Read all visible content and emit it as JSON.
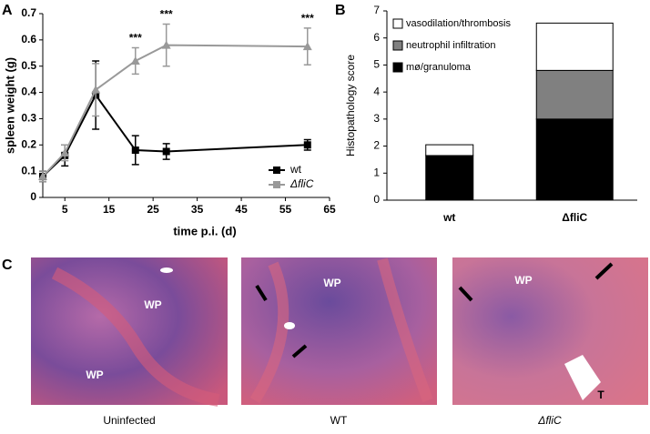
{
  "chart_data": [
    {
      "type": "line",
      "panel_label": "A",
      "ylabel": "spleen weight (g)",
      "xlabel": "time p.i. (d)",
      "x": [
        0,
        5,
        12,
        21,
        28,
        60
      ],
      "series": [
        {
          "name": "wt",
          "color": "#000000",
          "marker": "square",
          "values": [
            0.08,
            0.16,
            0.39,
            0.18,
            0.175,
            0.2
          ],
          "errors": [
            0.02,
            0.04,
            0.13,
            0.055,
            0.03,
            0.02
          ]
        },
        {
          "name": "ΔfliC",
          "color": "#999999",
          "marker": "triangle",
          "values": [
            0.08,
            0.17,
            0.41,
            0.52,
            0.58,
            0.575
          ],
          "errors": [
            0.02,
            0.03,
            0.1,
            0.05,
            0.08,
            0.07
          ]
        }
      ],
      "annotations": [
        {
          "text": "***",
          "x": 21
        },
        {
          "text": "***",
          "x": 28
        },
        {
          "text": "***",
          "x": 60
        }
      ],
      "xlim": [
        0,
        65
      ],
      "xticks": [
        5,
        15,
        25,
        35,
        45,
        55,
        65
      ],
      "ylim": [
        0,
        0.7
      ],
      "yticks": [
        0,
        0.1,
        0.2,
        0.3,
        0.4,
        0.5,
        0.6,
        0.7
      ],
      "legend": "lower right"
    },
    {
      "type": "stacked-bar",
      "panel_label": "B",
      "ylabel": "Histopathology score",
      "categories": [
        "wt",
        "ΔfliC"
      ],
      "series": [
        {
          "name": "mø/granuloma",
          "color": "#000000",
          "values": [
            1.65,
            3.0
          ]
        },
        {
          "name": "neutrophil infiltration",
          "color": "#808080",
          "values": [
            0,
            1.8
          ]
        },
        {
          "name": "vasodilation/thrombosis",
          "color": "#ffffff",
          "values": [
            0.4,
            1.75
          ]
        }
      ],
      "ylim": [
        0,
        7
      ],
      "yticks": [
        0,
        1,
        2,
        3,
        4,
        5,
        6,
        7
      ],
      "legend": "upper left"
    }
  ],
  "panel_c": {
    "label": "C",
    "images": [
      {
        "caption": "Uninfected",
        "labels": [
          "WP",
          "WP"
        ]
      },
      {
        "caption": "WT",
        "labels": [
          "WP"
        ]
      },
      {
        "caption": "ΔfliC",
        "labels": [
          "WP",
          "T"
        ]
      }
    ]
  }
}
